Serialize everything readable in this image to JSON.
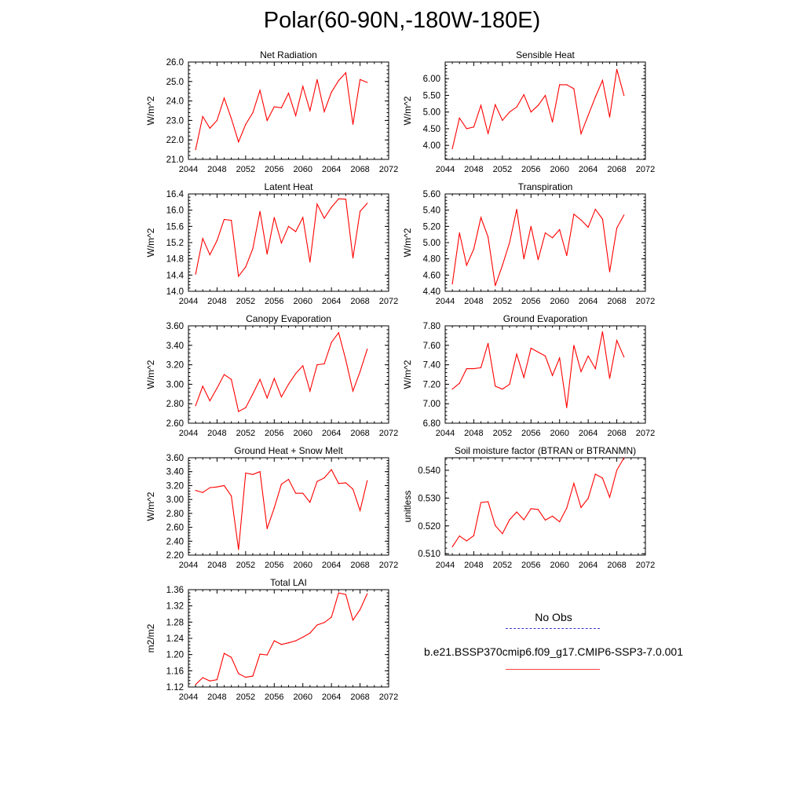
{
  "title": "Polar(60-90N,-180W-180E)",
  "colors": {
    "model_line": "#ff0000",
    "obs_line": "#3b3bd6",
    "axis": "#000000"
  },
  "legend": {
    "obs_label": "No Obs",
    "case_label": "b.e21.BSSP370cmip6.f09_g17.CMIP6-SSP3-7.0.001"
  },
  "chart_data": [
    {
      "type": "line",
      "title": "Net Radiation",
      "ylabel": "W/m^2",
      "xlim": [
        2044,
        2072
      ],
      "ylim": [
        21.0,
        26.0
      ],
      "xticks": [
        "2044",
        "2048",
        "2052",
        "2056",
        "2060",
        "2064",
        "2068",
        "2072"
      ],
      "yticks": [
        "21.0",
        "22.0",
        "23.0",
        "24.0",
        "25.0",
        "26.0"
      ],
      "x": [
        2045,
        2046,
        2047,
        2048,
        2049,
        2050,
        2051,
        2052,
        2053,
        2054,
        2055,
        2056,
        2057,
        2058,
        2059,
        2060,
        2061,
        2062,
        2063,
        2064,
        2065,
        2066,
        2067,
        2068,
        2069
      ],
      "series": [
        {
          "values": [
            21.5,
            23.2,
            22.6,
            23.0,
            24.15,
            23.1,
            21.9,
            22.8,
            23.4,
            24.55,
            23.0,
            23.7,
            23.65,
            24.4,
            23.25,
            24.75,
            23.5,
            25.1,
            23.45,
            24.45,
            25.05,
            25.45,
            22.8,
            25.1,
            24.95
          ]
        }
      ]
    },
    {
      "type": "line",
      "title": "Sensible Heat",
      "ylabel": "W/m^2",
      "xlim": [
        2044,
        2072
      ],
      "ylim": [
        3.58,
        6.5
      ],
      "xticks": [
        "2044",
        "2048",
        "2052",
        "2056",
        "2060",
        "2064",
        "2068",
        "2072"
      ],
      "yticks": [
        "4.00",
        "4.50",
        "5.00",
        "5.50",
        "6.00"
      ],
      "x": [
        2045,
        2046,
        2047,
        2048,
        2049,
        2050,
        2051,
        2052,
        2053,
        2054,
        2055,
        2056,
        2057,
        2058,
        2059,
        2060,
        2061,
        2062,
        2063,
        2064,
        2065,
        2066,
        2067,
        2068,
        2069
      ],
      "series": [
        {
          "values": [
            3.9,
            4.82,
            4.5,
            4.55,
            5.2,
            4.35,
            5.22,
            4.75,
            5.0,
            5.15,
            5.52,
            5.0,
            5.2,
            5.5,
            4.7,
            5.82,
            5.82,
            5.7,
            4.35,
            4.9,
            5.45,
            5.95,
            4.85,
            6.28,
            5.5
          ]
        }
      ]
    },
    {
      "type": "line",
      "title": "Latent Heat",
      "ylabel": "W/m^2",
      "xlim": [
        2044,
        2072
      ],
      "ylim": [
        14.0,
        16.4
      ],
      "xticks": [
        "2044",
        "2048",
        "2052",
        "2056",
        "2060",
        "2064",
        "2068",
        "2072"
      ],
      "yticks": [
        "14.0",
        "14.4",
        "14.8",
        "15.2",
        "15.6",
        "16.0",
        "16.4"
      ],
      "x": [
        2045,
        2046,
        2047,
        2048,
        2049,
        2050,
        2051,
        2052,
        2053,
        2054,
        2055,
        2056,
        2057,
        2058,
        2059,
        2060,
        2061,
        2062,
        2063,
        2064,
        2065,
        2066,
        2067,
        2068,
        2069
      ],
      "series": [
        {
          "values": [
            14.42,
            15.3,
            14.9,
            15.25,
            15.77,
            15.75,
            14.37,
            14.6,
            15.05,
            15.97,
            14.92,
            15.82,
            15.19,
            15.6,
            15.47,
            15.82,
            14.72,
            16.15,
            15.8,
            16.07,
            16.28,
            16.27,
            14.82,
            15.97,
            16.17
          ]
        }
      ]
    },
    {
      "type": "line",
      "title": "Transpiration",
      "ylabel": "W/m^2",
      "xlim": [
        2044,
        2072
      ],
      "ylim": [
        4.4,
        5.6
      ],
      "xticks": [
        "2044",
        "2048",
        "2052",
        "2056",
        "2060",
        "2064",
        "2068",
        "2072"
      ],
      "yticks": [
        "4.40",
        "4.60",
        "4.80",
        "5.00",
        "5.20",
        "5.40",
        "5.60"
      ],
      "x": [
        2045,
        2046,
        2047,
        2048,
        2049,
        2050,
        2051,
        2052,
        2053,
        2054,
        2055,
        2056,
        2057,
        2058,
        2059,
        2060,
        2061,
        2062,
        2063,
        2064,
        2065,
        2066,
        2067,
        2068,
        2069
      ],
      "series": [
        {
          "values": [
            4.49,
            5.12,
            4.72,
            4.92,
            5.31,
            5.07,
            4.47,
            4.72,
            5.0,
            5.41,
            4.8,
            5.2,
            4.79,
            5.12,
            5.06,
            5.16,
            4.84,
            5.35,
            5.28,
            5.19,
            5.41,
            5.29,
            4.64,
            5.18,
            5.34
          ]
        }
      ]
    },
    {
      "type": "line",
      "title": "Canopy Evaporation",
      "ylabel": "W/m^2",
      "xlim": [
        2044,
        2072
      ],
      "ylim": [
        2.6,
        3.6
      ],
      "xticks": [
        "2044",
        "2048",
        "2052",
        "2056",
        "2060",
        "2064",
        "2068",
        "2072"
      ],
      "yticks": [
        "2.60",
        "2.80",
        "3.00",
        "3.20",
        "3.40",
        "3.60"
      ],
      "x": [
        2045,
        2046,
        2047,
        2048,
        2049,
        2050,
        2051,
        2052,
        2053,
        2054,
        2055,
        2056,
        2057,
        2058,
        2059,
        2060,
        2061,
        2062,
        2063,
        2064,
        2065,
        2066,
        2067,
        2068,
        2069
      ],
      "series": [
        {
          "values": [
            2.78,
            2.98,
            2.83,
            2.96,
            3.1,
            3.05,
            2.72,
            2.76,
            2.9,
            3.05,
            2.86,
            3.06,
            2.87,
            3.0,
            3.11,
            3.19,
            2.93,
            3.2,
            3.21,
            3.43,
            3.53,
            3.25,
            2.93,
            3.13,
            3.36
          ]
        }
      ]
    },
    {
      "type": "line",
      "title": "Ground Evaporation",
      "ylabel": "W/m^2",
      "xlim": [
        2044,
        2072
      ],
      "ylim": [
        6.8,
        7.8
      ],
      "xticks": [
        "2044",
        "2048",
        "2052",
        "2056",
        "2060",
        "2064",
        "2068",
        "2072"
      ],
      "yticks": [
        "6.80",
        "7.00",
        "7.20",
        "7.40",
        "7.60",
        "7.80"
      ],
      "x": [
        2045,
        2046,
        2047,
        2048,
        2049,
        2050,
        2051,
        2052,
        2053,
        2054,
        2055,
        2056,
        2057,
        2058,
        2059,
        2060,
        2061,
        2062,
        2063,
        2064,
        2065,
        2066,
        2067,
        2068,
        2069
      ],
      "series": [
        {
          "values": [
            7.15,
            7.21,
            7.36,
            7.36,
            7.37,
            7.62,
            7.18,
            7.15,
            7.2,
            7.51,
            7.27,
            7.57,
            7.53,
            7.49,
            7.29,
            7.47,
            6.96,
            7.6,
            7.33,
            7.49,
            7.36,
            7.74,
            7.26,
            7.65,
            7.48
          ]
        }
      ]
    },
    {
      "type": "line",
      "title": "Ground Heat + Snow Melt",
      "ylabel": "W/m^2",
      "xlim": [
        2044,
        2072
      ],
      "ylim": [
        2.2,
        3.6
      ],
      "xticks": [
        "2044",
        "2048",
        "2052",
        "2056",
        "2060",
        "2064",
        "2068",
        "2072"
      ],
      "yticks": [
        "2.20",
        "2.40",
        "2.60",
        "2.80",
        "3.00",
        "3.20",
        "3.40",
        "3.60"
      ],
      "x": [
        2045,
        2046,
        2047,
        2048,
        2049,
        2050,
        2051,
        2052,
        2053,
        2054,
        2055,
        2056,
        2057,
        2058,
        2059,
        2060,
        2061,
        2062,
        2063,
        2064,
        2065,
        2066,
        2067,
        2068,
        2069
      ],
      "series": [
        {
          "values": [
            3.13,
            3.1,
            3.17,
            3.18,
            3.2,
            3.05,
            2.28,
            3.38,
            3.36,
            3.4,
            2.58,
            2.88,
            3.22,
            3.29,
            3.09,
            3.09,
            2.96,
            3.26,
            3.31,
            3.43,
            3.23,
            3.24,
            3.15,
            2.84,
            3.27
          ]
        }
      ]
    },
    {
      "type": "line",
      "title": "Soil moisture factor (BTRAN or BTRANMN)",
      "ylabel": "unitless",
      "xlim": [
        2044,
        2072
      ],
      "ylim": [
        0.5095,
        0.5445
      ],
      "xticks": [
        "2044",
        "2048",
        "2052",
        "2056",
        "2060",
        "2064",
        "2068",
        "2072"
      ],
      "yticks": [
        "0.510",
        "0.520",
        "0.530",
        "0.540"
      ],
      "x": [
        2045,
        2046,
        2047,
        2048,
        2049,
        2050,
        2051,
        2052,
        2053,
        2054,
        2055,
        2056,
        2057,
        2058,
        2059,
        2060,
        2061,
        2062,
        2063,
        2064,
        2065,
        2066,
        2067,
        2068,
        2069
      ],
      "series": [
        {
          "values": [
            0.5125,
            0.5164,
            0.5146,
            0.5165,
            0.5284,
            0.5287,
            0.5201,
            0.5172,
            0.5222,
            0.525,
            0.5222,
            0.5262,
            0.5259,
            0.5221,
            0.5235,
            0.5215,
            0.5264,
            0.5353,
            0.5266,
            0.5299,
            0.5386,
            0.5372,
            0.5303,
            0.54,
            0.5445
          ]
        }
      ]
    },
    {
      "type": "line",
      "title": "Total LAI",
      "ylabel": "m2/m2",
      "xlim": [
        2044,
        2072
      ],
      "ylim": [
        1.12,
        1.36
      ],
      "xticks": [
        "2044",
        "2048",
        "2052",
        "2056",
        "2060",
        "2064",
        "2068",
        "2072"
      ],
      "yticks": [
        "1.12",
        "1.16",
        "1.20",
        "1.24",
        "1.28",
        "1.32",
        "1.36"
      ],
      "x": [
        2045,
        2046,
        2047,
        2048,
        2049,
        2050,
        2051,
        2052,
        2053,
        2054,
        2055,
        2056,
        2057,
        2058,
        2059,
        2060,
        2061,
        2062,
        2063,
        2064,
        2065,
        2066,
        2067,
        2068,
        2069
      ],
      "series": [
        {
          "values": [
            1.126,
            1.143,
            1.135,
            1.138,
            1.203,
            1.193,
            1.153,
            1.144,
            1.147,
            1.201,
            1.199,
            1.234,
            1.225,
            1.229,
            1.234,
            1.243,
            1.253,
            1.273,
            1.279,
            1.292,
            1.352,
            1.348,
            1.285,
            1.311,
            1.35
          ]
        }
      ]
    }
  ]
}
